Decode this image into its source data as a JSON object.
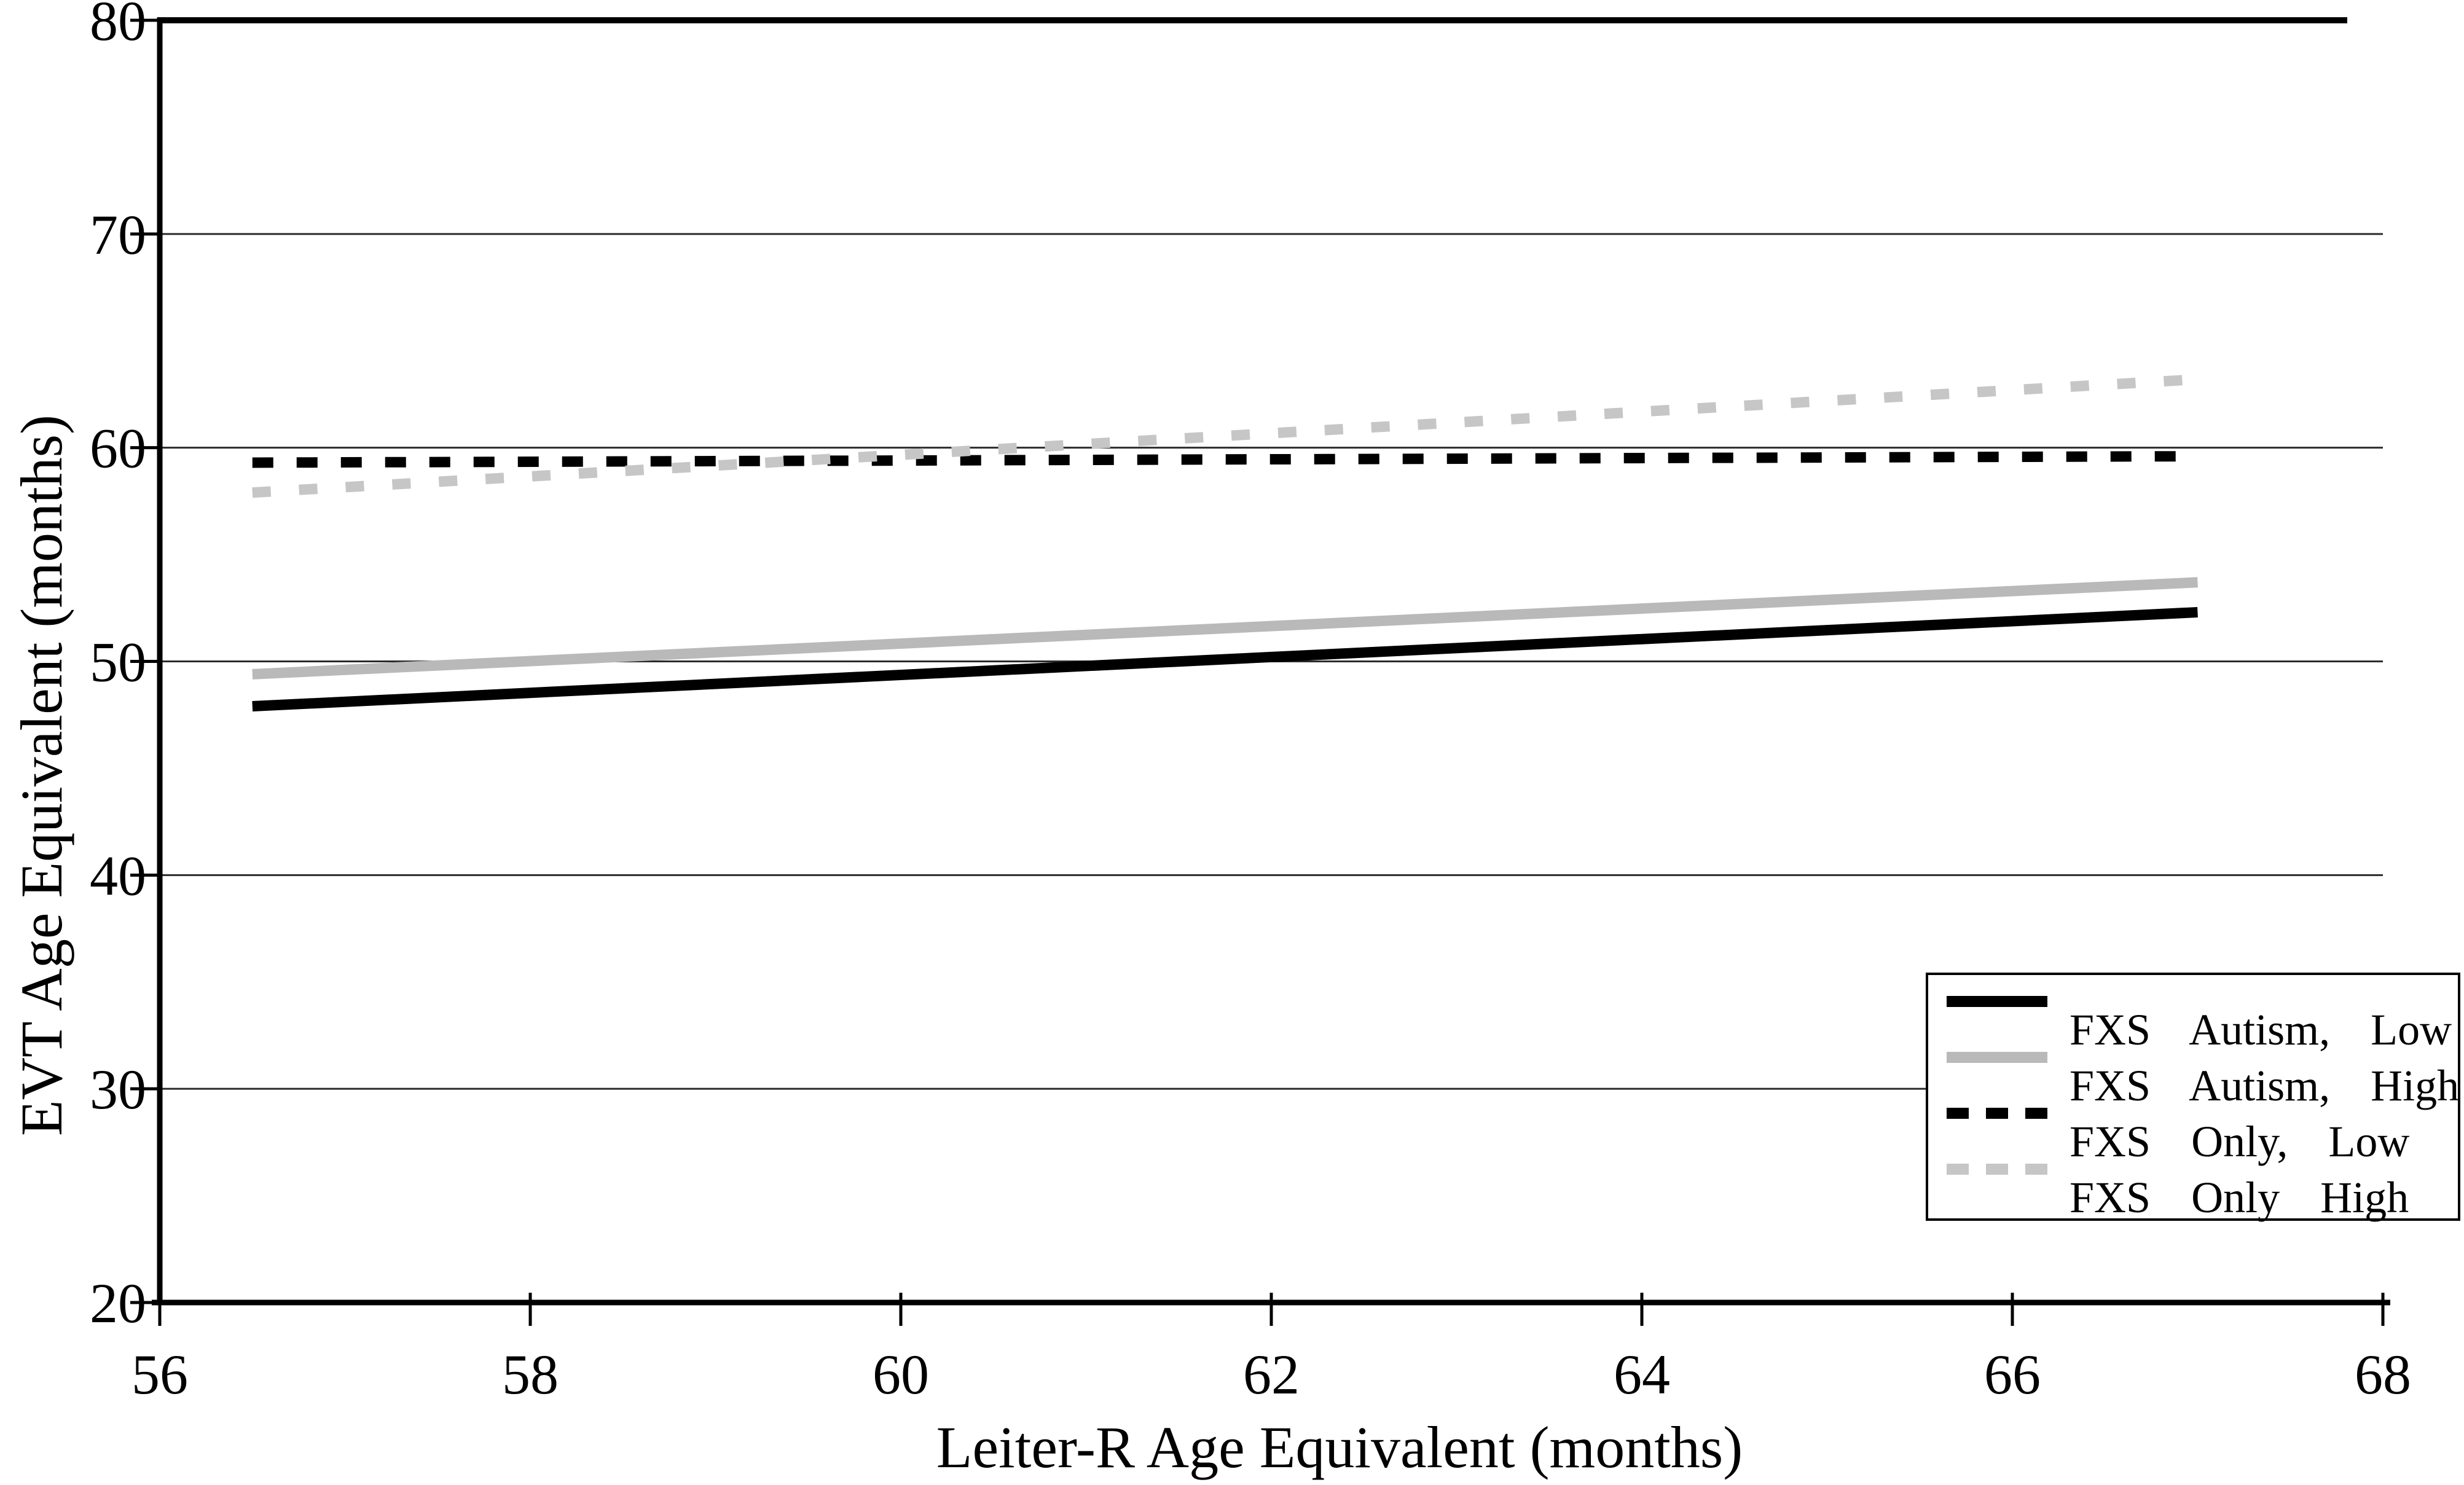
{
  "figure": {
    "background": "#ffffff",
    "axis_color": "#000000",
    "gridline_color": "#2b2b2b"
  },
  "chart_data": {
    "type": "line",
    "title": "",
    "xlabel": "Leiter-R Age Equivalent (months)",
    "ylabel": "EVT Age Equivalent (months)",
    "xlim": [
      56,
      68
    ],
    "ylim": [
      20,
      80
    ],
    "xticks": [
      56,
      58,
      60,
      62,
      64,
      66,
      68
    ],
    "yticks": [
      20,
      30,
      40,
      50,
      60,
      70,
      80
    ],
    "grid": "horizontal",
    "legend_position": "lower-right-box",
    "series": [
      {
        "name": "FXS Autism, Low",
        "style": "solid",
        "color": "#000000",
        "x": [
          56.5,
          67
        ],
        "y": [
          47.9,
          52.3
        ]
      },
      {
        "name": "FXS Autism, High",
        "style": "solid",
        "color": "#b9b9b9",
        "x": [
          56.5,
          67
        ],
        "y": [
          49.4,
          53.7
        ]
      },
      {
        "name": "FXS Only, Low",
        "style": "dashed",
        "color": "#000000",
        "x": [
          56.5,
          67
        ],
        "y": [
          59.3,
          59.6
        ]
      },
      {
        "name": "FXS Only High",
        "style": "dashed",
        "color": "#c6c6c6",
        "x": [
          56.5,
          67
        ],
        "y": [
          57.9,
          63.2
        ]
      }
    ]
  }
}
